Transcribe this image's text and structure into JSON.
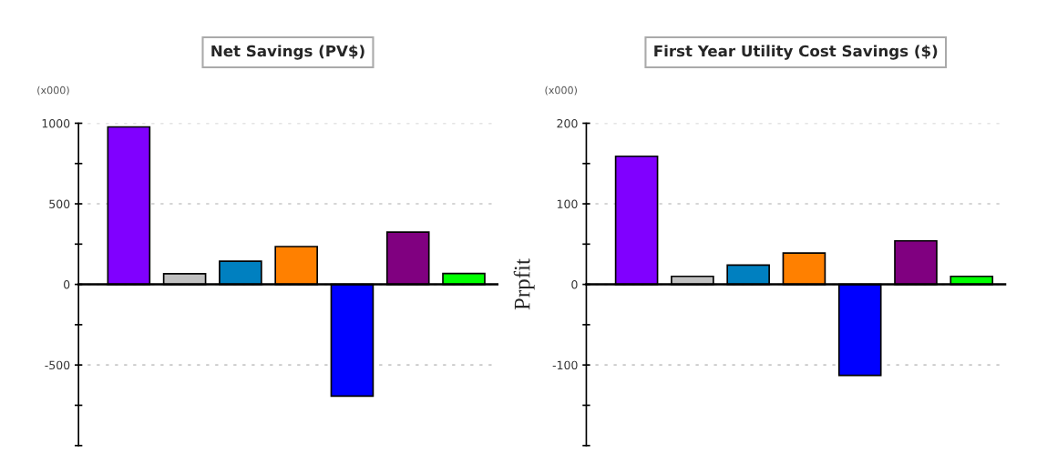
{
  "chart_data": [
    {
      "type": "bar",
      "title": "Net Savings (PV$)",
      "annotations": [
        "(x000)"
      ],
      "categories": [
        null,
        null,
        null,
        null,
        null,
        null,
        null
      ],
      "values": [
        977,
        66,
        144,
        235,
        -693,
        324,
        68
      ],
      "colors": [
        "#8000ff",
        "#c0c0c0",
        "#0080c0",
        "#ff8000",
        "#0000ff",
        "#800080",
        "#00ff00"
      ],
      "ylim": [
        -1000,
        1000
      ],
      "yticks": [
        {
          "value": -1000,
          "label": null
        },
        {
          "value": -750,
          "label": null
        },
        -500,
        {
          "value": -250,
          "label": null
        },
        0,
        {
          "value": 250,
          "label": null
        },
        500,
        {
          "value": 750,
          "label": null
        },
        1000
      ],
      "grid": "y"
    },
    {
      "type": "bar",
      "title": "First Year Utility Cost Savings ($)",
      "ylabel": "Prpfit",
      "annotations": [
        "(x000)"
      ],
      "categories": [
        null,
        null,
        null,
        null,
        null,
        null,
        null
      ],
      "values": [
        159,
        10,
        24,
        39,
        -113,
        54,
        10
      ],
      "colors": [
        "#8000ff",
        "#c0c0c0",
        "#0080c0",
        "#ff8000",
        "#0000ff",
        "#800080",
        "#00ff00"
      ],
      "ylim": [
        -200,
        200
      ],
      "yticks": [
        {
          "value": -200,
          "label": null
        },
        {
          "value": -150,
          "label": null
        },
        -100,
        {
          "value": -50,
          "label": null
        },
        0,
        {
          "value": 50,
          "label": null
        },
        100,
        {
          "value": 150,
          "label": null
        },
        200
      ],
      "grid": "y"
    }
  ]
}
